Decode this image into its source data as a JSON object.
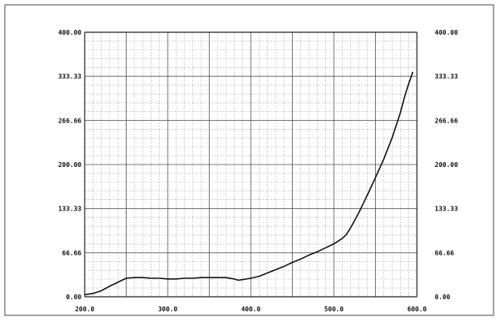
{
  "chart_data": {
    "type": "line",
    "title": "",
    "xlabel": "",
    "ylabel": "",
    "xlim": [
      200,
      600
    ],
    "ylim": [
      0,
      400
    ],
    "grid": true,
    "x_ticks": [
      "200.0",
      "300.0",
      "400.0",
      "500.0",
      "600.0"
    ],
    "y_ticks_left": [
      "0.00",
      "66.66",
      "133.33",
      "200.00",
      "266.66",
      "333.33",
      "400.00"
    ],
    "y_ticks_right": [
      "0.00",
      "66.66",
      "133.33",
      "200.00",
      "266.66",
      "333.33",
      "400.00"
    ],
    "series": [
      {
        "color": "#111111",
        "x": [
          200,
          210,
          220,
          230,
          240,
          250,
          260,
          270,
          280,
          290,
          300,
          310,
          320,
          330,
          340,
          350,
          360,
          370,
          380,
          385,
          390,
          400,
          410,
          420,
          430,
          440,
          450,
          460,
          470,
          480,
          490,
          500,
          505,
          510,
          515,
          520,
          530,
          540,
          550,
          560,
          570,
          580,
          585,
          590,
          595
        ],
        "y": [
          3,
          5,
          9,
          16,
          22,
          28,
          29,
          29,
          28,
          28,
          27,
          27,
          28,
          28,
          29,
          29,
          29,
          29,
          27,
          25,
          26,
          28,
          31,
          36,
          41,
          46,
          52,
          57,
          63,
          68,
          74,
          80,
          84,
          88,
          94,
          104,
          127,
          153,
          180,
          208,
          240,
          278,
          302,
          322,
          340
        ]
      }
    ]
  }
}
